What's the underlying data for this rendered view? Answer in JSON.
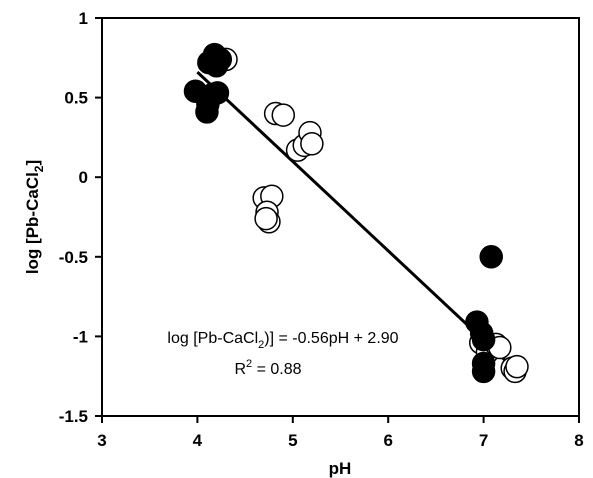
{
  "chart_data": {
    "type": "scatter",
    "title": "",
    "xlabel": "pH",
    "ylabel": "log [Pb-CaCl",
    "ylabel_sub": "2",
    "ylabel_close": "]",
    "xlim": [
      3,
      8
    ],
    "ylim": [
      -1.5,
      1
    ],
    "xticks": [
      3,
      4,
      5,
      6,
      7,
      8
    ],
    "xtick_labels": [
      "3",
      "4",
      "5",
      "6",
      "7",
      "8"
    ],
    "yticks": [
      1,
      0.5,
      0,
      -0.5,
      -1,
      -1.5
    ],
    "ytick_labels": [
      "1",
      "0.5",
      "0",
      "-0.5",
      "-1",
      "-1.5"
    ],
    "grid": false,
    "series": [
      {
        "style": "filled",
        "color": "#000000",
        "points": [
          {
            "x": 3.98,
            "y": 0.54
          },
          {
            "x": 4.12,
            "y": 0.72
          },
          {
            "x": 4.18,
            "y": 0.77
          },
          {
            "x": 4.24,
            "y": 0.74
          },
          {
            "x": 4.16,
            "y": 0.52
          },
          {
            "x": 4.21,
            "y": 0.53
          },
          {
            "x": 4.11,
            "y": 0.46
          },
          {
            "x": 4.1,
            "y": 0.41
          },
          {
            "x": 4.2,
            "y": 0.7
          },
          {
            "x": 6.93,
            "y": -0.91
          },
          {
            "x": 6.98,
            "y": -0.98
          },
          {
            "x": 7.0,
            "y": -1.02
          },
          {
            "x": 7.0,
            "y": -1.17
          },
          {
            "x": 7.0,
            "y": -1.22
          },
          {
            "x": 7.08,
            "y": -0.5
          }
        ]
      },
      {
        "style": "open",
        "color": "#000000",
        "points": [
          {
            "x": 4.3,
            "y": 0.74
          },
          {
            "x": 4.82,
            "y": 0.4
          },
          {
            "x": 4.9,
            "y": 0.39
          },
          {
            "x": 5.05,
            "y": 0.17
          },
          {
            "x": 5.12,
            "y": 0.2
          },
          {
            "x": 5.18,
            "y": 0.28
          },
          {
            "x": 5.2,
            "y": 0.21
          },
          {
            "x": 4.7,
            "y": -0.13
          },
          {
            "x": 4.78,
            "y": -0.12
          },
          {
            "x": 4.73,
            "y": -0.22
          },
          {
            "x": 4.75,
            "y": -0.28
          },
          {
            "x": 4.72,
            "y": -0.26
          },
          {
            "x": 6.97,
            "y": -1.04
          },
          {
            "x": 7.04,
            "y": -1.1
          },
          {
            "x": 7.13,
            "y": -1.05
          },
          {
            "x": 7.17,
            "y": -1.07
          },
          {
            "x": 7.3,
            "y": -1.2
          },
          {
            "x": 7.33,
            "y": -1.22
          },
          {
            "x": 7.35,
            "y": -1.19
          }
        ]
      }
    ],
    "regression": {
      "x_start": 4.0,
      "y_start": 0.66,
      "x_end": 7.35,
      "y_end": -1.22,
      "color": "#000000"
    },
    "annotations": {
      "equation_prefix": "log [Pb-CaCl",
      "equation_sub": "2",
      "equation_suffix": ")] = -0.56pH + 2.90",
      "r2_prefix": "R",
      "r2_sup": "2",
      "r2_suffix": " = 0.88"
    }
  }
}
